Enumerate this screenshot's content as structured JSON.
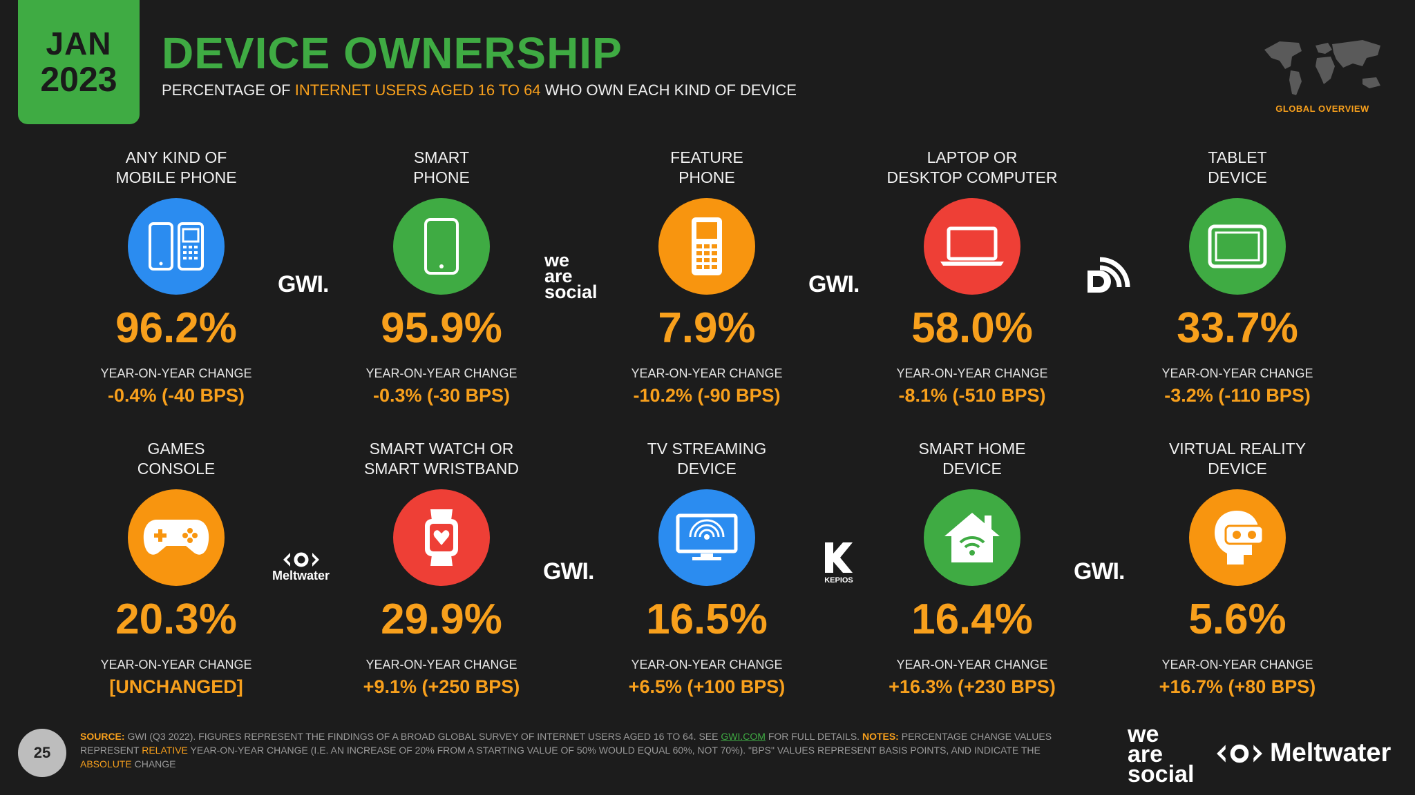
{
  "header": {
    "month": "JAN",
    "year": "2023",
    "title": "DEVICE OWNERSHIP",
    "subtitle_pre": "PERCENTAGE OF",
    "subtitle_highlight": "INTERNET USERS AGED 16 TO 64",
    "subtitle_post": "WHO OWN EACH KIND OF DEVICE",
    "region_label": "GLOBAL OVERVIEW"
  },
  "devices": [
    {
      "label": "ANY KIND OF\nMOBILE PHONE",
      "value": "96.2%",
      "yoy_label": "YEAR-ON-YEAR CHANGE",
      "change": "-0.4% (-40 BPS)",
      "icon": "mobile-phones-icon",
      "color": "#2b8cf0"
    },
    {
      "label": "SMART\nPHONE",
      "value": "95.9%",
      "yoy_label": "YEAR-ON-YEAR CHANGE",
      "change": "-0.3% (-30 BPS)",
      "icon": "smartphone-icon",
      "color": "#3fab43"
    },
    {
      "label": "FEATURE\nPHONE",
      "value": "7.9%",
      "yoy_label": "YEAR-ON-YEAR CHANGE",
      "change": "-10.2% (-90 BPS)",
      "icon": "feature-phone-icon",
      "color": "#f8950f"
    },
    {
      "label": "LAPTOP OR\nDESKTOP COMPUTER",
      "value": "58.0%",
      "yoy_label": "YEAR-ON-YEAR CHANGE",
      "change": "-8.1% (-510 BPS)",
      "icon": "laptop-icon",
      "color": "#ee3f36"
    },
    {
      "label": "TABLET\nDEVICE",
      "value": "33.7%",
      "yoy_label": "YEAR-ON-YEAR CHANGE",
      "change": "-3.2% (-110 BPS)",
      "icon": "tablet-icon",
      "color": "#3fab43"
    },
    {
      "label": "GAMES\nCONSOLE",
      "value": "20.3%",
      "yoy_label": "YEAR-ON-YEAR CHANGE",
      "change": "[UNCHANGED]",
      "icon": "gamepad-icon",
      "color": "#f8950f"
    },
    {
      "label": "SMART WATCH OR\nSMART WRISTBAND",
      "value": "29.9%",
      "yoy_label": "YEAR-ON-YEAR CHANGE",
      "change": "+9.1% (+250 BPS)",
      "icon": "smartwatch-icon",
      "color": "#ee3f36"
    },
    {
      "label": "TV STREAMING\nDEVICE",
      "value": "16.5%",
      "yoy_label": "YEAR-ON-YEAR CHANGE",
      "change": "+6.5% (+100 BPS)",
      "icon": "tv-streaming-icon",
      "color": "#2b8cf0"
    },
    {
      "label": "SMART HOME\nDEVICE",
      "value": "16.4%",
      "yoy_label": "YEAR-ON-YEAR CHANGE",
      "change": "+16.3% (+230 BPS)",
      "icon": "smart-home-icon",
      "color": "#3fab43"
    },
    {
      "label": "VIRTUAL REALITY\nDEVICE",
      "value": "5.6%",
      "yoy_label": "YEAR-ON-YEAR CHANGE",
      "change": "+16.7% (+80 BPS)",
      "icon": "vr-headset-icon",
      "color": "#f8950f"
    }
  ],
  "partners": {
    "gwi": "GWI.",
    "was_1": "we",
    "was_2": "are",
    "was_3": "social",
    "meltwater": "Meltwater",
    "kepios": "KEPIOS"
  },
  "footer": {
    "source_label": "SOURCE:",
    "source_text_1": "GWI (Q3 2022). FIGURES REPRESENT THE FINDINGS OF A BROAD GLOBAL SURVEY OF INTERNET USERS AGED 16 TO 64. SEE",
    "link": "GWI.COM",
    "source_text_2": "FOR FULL DETAILS.",
    "notes_label": "NOTES:",
    "notes_text_1": "PERCENTAGE CHANGE VALUES REPRESENT",
    "relative": "RELATIVE",
    "notes_text_2": "YEAR-ON-YEAR CHANGE (I.E. AN INCREASE OF 20% FROM A STARTING VALUE OF 50% WOULD EQUAL 60%, NOT 70%). \"BPS\" VALUES REPRESENT BASIS POINTS, AND INDICATE THE",
    "absolute": "ABSOLUTE",
    "notes_text_3": "CHANGE",
    "page_number": "25",
    "brand_1": "we",
    "brand_2": "are",
    "brand_3": "social",
    "brand_meltwater": "Meltwater"
  }
}
